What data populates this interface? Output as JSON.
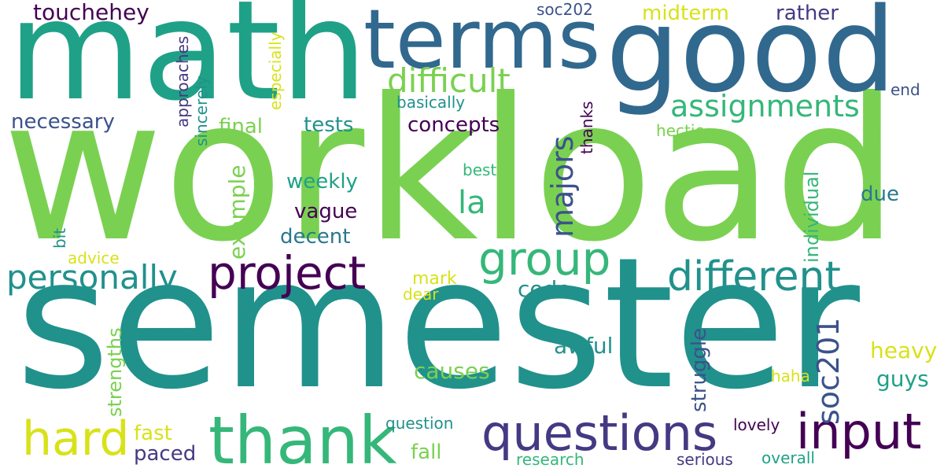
{
  "palette": {
    "purple": "#440154",
    "indigo": "#3b528b",
    "blue": "#31688e",
    "teal": "#21918c",
    "sea": "#1fa187",
    "green": "#35b779",
    "lime": "#7ad151",
    "yellow": "#d8e219"
  },
  "words": [
    {
      "text": "workload",
      "color": "#7ad151"
    },
    {
      "text": "semester",
      "color": "#21918c"
    },
    {
      "text": "math",
      "color": "#1fa187"
    },
    {
      "text": "good",
      "color": "#31688e"
    },
    {
      "text": "terms",
      "color": "#31688e"
    },
    {
      "text": "thank",
      "color": "#35b779"
    },
    {
      "text": "questions",
      "color": "#443a83"
    },
    {
      "text": "input",
      "color": "#440154"
    },
    {
      "text": "hard",
      "color": "#d8e219"
    },
    {
      "text": "project",
      "color": "#440154"
    },
    {
      "text": "group",
      "color": "#35b779"
    },
    {
      "text": "different",
      "color": "#21918c"
    },
    {
      "text": "personally",
      "color": "#21918c"
    },
    {
      "text": "assignments",
      "color": "#35b779"
    },
    {
      "text": "difficult",
      "color": "#7ad151"
    },
    {
      "text": "majors",
      "color": "#3b528b"
    },
    {
      "text": "soc201",
      "color": "#3b528b"
    },
    {
      "text": "touchehey",
      "color": "#440154"
    },
    {
      "text": "necessary",
      "color": "#3b528b"
    },
    {
      "text": "concepts",
      "color": "#440154"
    },
    {
      "text": "tests",
      "color": "#21918c"
    },
    {
      "text": "final",
      "color": "#7ad151"
    },
    {
      "text": "la",
      "color": "#35b779"
    },
    {
      "text": "midterm",
      "color": "#d8e219"
    },
    {
      "text": "rather",
      "color": "#443a83"
    },
    {
      "text": "basically",
      "color": "#21918c"
    },
    {
      "text": "weekly",
      "color": "#1fa187"
    },
    {
      "text": "vague",
      "color": "#440154"
    },
    {
      "text": "decent",
      "color": "#2a788e"
    },
    {
      "text": "example",
      "color": "#7ad151"
    },
    {
      "text": "code",
      "color": "#21918c"
    },
    {
      "text": "awful",
      "color": "#21918c"
    },
    {
      "text": "causes",
      "color": "#7ad151"
    },
    {
      "text": "fall",
      "color": "#7ad151"
    },
    {
      "text": "fast",
      "color": "#d8e219"
    },
    {
      "text": "paced",
      "color": "#443a83"
    },
    {
      "text": "heavy",
      "color": "#d8e219"
    },
    {
      "text": "guys",
      "color": "#1fa187"
    },
    {
      "text": "due",
      "color": "#2a788e"
    },
    {
      "text": "struggle",
      "color": "#3b528b"
    },
    {
      "text": "individual",
      "color": "#35b779"
    },
    {
      "text": "strengths",
      "color": "#7ad151"
    },
    {
      "text": "approaches",
      "color": "#443a83"
    },
    {
      "text": "sincerely",
      "color": "#21918c"
    },
    {
      "text": "especially",
      "color": "#d8e219"
    },
    {
      "text": "thanks",
      "color": "#440154"
    },
    {
      "text": "soc202",
      "color": "#3b528b"
    },
    {
      "text": "hectic",
      "color": "#7ad151"
    },
    {
      "text": "end",
      "color": "#3b528b"
    },
    {
      "text": "best",
      "color": "#35b779"
    },
    {
      "text": "advice",
      "color": "#d8e219"
    },
    {
      "text": "mark",
      "color": "#d8e219"
    },
    {
      "text": "dear",
      "color": "#d8e219"
    },
    {
      "text": "bit",
      "color": "#21918c"
    },
    {
      "text": "haha",
      "color": "#d8e219"
    },
    {
      "text": "question",
      "color": "#21918c"
    },
    {
      "text": "lovely",
      "color": "#440154"
    },
    {
      "text": "research",
      "color": "#35b779"
    },
    {
      "text": "serious",
      "color": "#443a83"
    },
    {
      "text": "overall",
      "color": "#1fa187"
    }
  ]
}
